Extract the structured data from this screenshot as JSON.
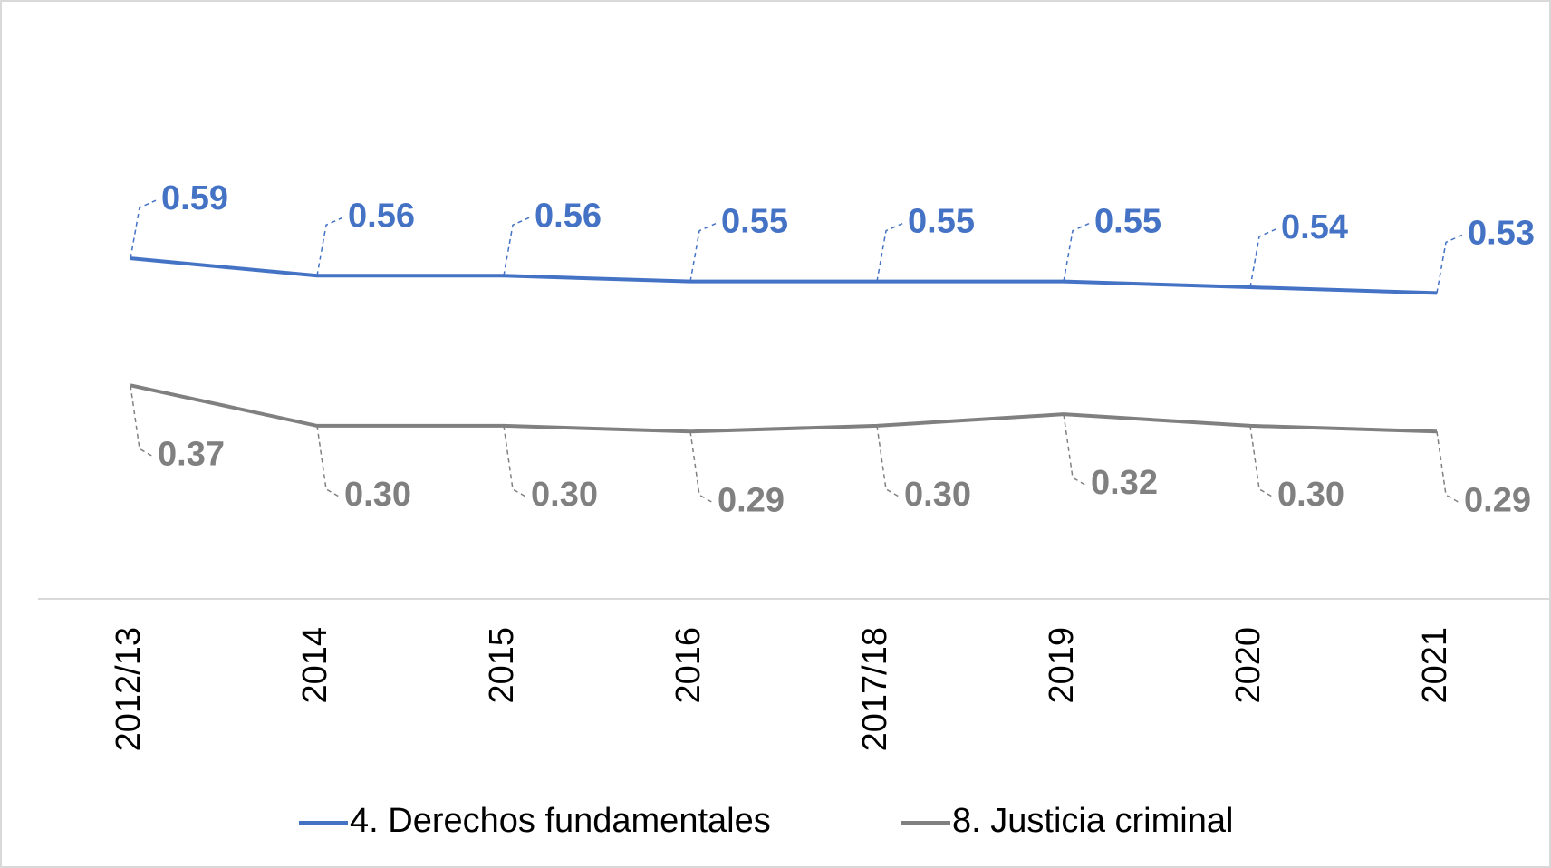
{
  "chart_data": {
    "type": "line",
    "categories": [
      "2012/13",
      "2014",
      "2015",
      "2016",
      "2017/18",
      "2019",
      "2020",
      "2021"
    ],
    "series": [
      {
        "name": "4. Derechos fundamentales",
        "color": "#4472c4",
        "values": [
          0.59,
          0.56,
          0.56,
          0.55,
          0.55,
          0.55,
          0.54,
          0.53
        ],
        "value_labels": [
          "0.59",
          "0.56",
          "0.56",
          "0.55",
          "0.55",
          "0.55",
          "0.54",
          "0.53"
        ]
      },
      {
        "name": "8. Justicia criminal",
        "color": "#808080",
        "values": [
          0.37,
          0.3,
          0.3,
          0.29,
          0.3,
          0.32,
          0.3,
          0.29
        ],
        "value_labels": [
          "0.37",
          "0.30",
          "0.30",
          "0.29",
          "0.30",
          "0.32",
          "0.30",
          "0.29"
        ]
      }
    ],
    "ylim": [
      0,
      1
    ],
    "legend": "bottom"
  }
}
